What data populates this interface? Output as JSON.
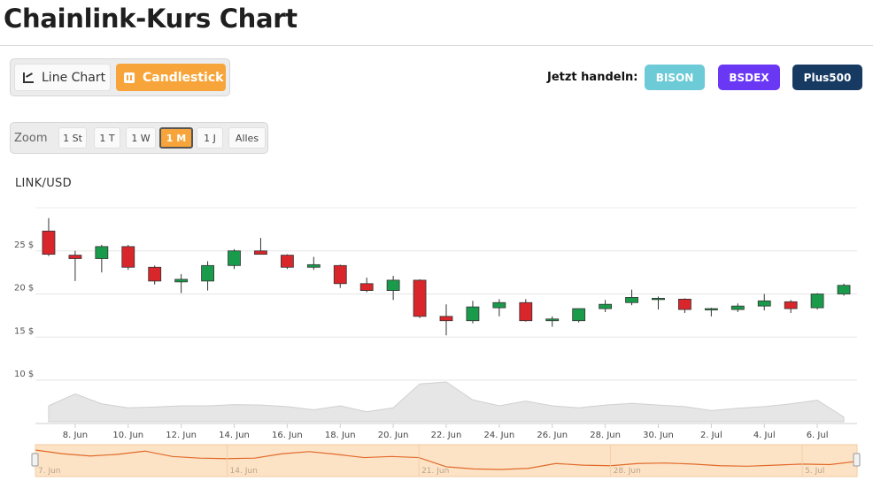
{
  "page": {
    "title": "Chainlink-Kurs Chart"
  },
  "mode_switch": {
    "line_label": "Line Chart",
    "candle_label": "Candlestick",
    "active": "candlestick"
  },
  "trade": {
    "label": "Jetzt handeln:",
    "bison": "BISON",
    "bsdex": "BSDEX",
    "plus500": "Plus500"
  },
  "zoom": {
    "label": "Zoom",
    "options": [
      "1 St",
      "1 T",
      "1 W",
      "1 M",
      "1 J",
      "Alles"
    ],
    "active": "1 M"
  },
  "colors": {
    "accent": "#f7a53a",
    "up": "#1a9b4b",
    "down": "#d8262b",
    "bison": "#6ccbd6",
    "bsdex": "#6a37f5",
    "plus500": "#173a63"
  },
  "chart_data": {
    "type": "candlestick",
    "title": "LINK/USD",
    "y_tick_labels": [
      "10 $",
      "15 $",
      "20 $",
      "25 $"
    ],
    "y_ticks": [
      10,
      15,
      20,
      25
    ],
    "ylim": [
      10,
      30
    ],
    "x_tick_labels": [
      "8. Jun",
      "10. Jun",
      "12. Jun",
      "14. Jun",
      "16. Jun",
      "18. Jun",
      "20. Jun",
      "22. Jun",
      "24. Jun",
      "26. Jun",
      "28. Jun",
      "30. Jun",
      "2. Jul",
      "4. Jul",
      "6. Jul"
    ],
    "x_tick_index": [
      1,
      3,
      5,
      7,
      9,
      11,
      13,
      15,
      17,
      19,
      21,
      23,
      25,
      27,
      29
    ],
    "candles": [
      {
        "o": 27.3,
        "h": 28.8,
        "l": 24.4,
        "c": 24.6
      },
      {
        "o": 24.5,
        "h": 25.0,
        "l": 21.5,
        "c": 24.1
      },
      {
        "o": 24.1,
        "h": 25.7,
        "l": 22.5,
        "c": 25.5
      },
      {
        "o": 25.5,
        "h": 25.7,
        "l": 22.8,
        "c": 23.1
      },
      {
        "o": 23.1,
        "h": 23.3,
        "l": 21.1,
        "c": 21.5
      },
      {
        "o": 21.4,
        "h": 22.3,
        "l": 20.1,
        "c": 21.7
      },
      {
        "o": 21.5,
        "h": 23.8,
        "l": 20.4,
        "c": 23.3
      },
      {
        "o": 23.3,
        "h": 25.2,
        "l": 22.9,
        "c": 25.0
      },
      {
        "o": 25.0,
        "h": 26.5,
        "l": 24.8,
        "c": 24.6
      },
      {
        "o": 24.5,
        "h": 24.6,
        "l": 22.9,
        "c": 23.1
      },
      {
        "o": 23.1,
        "h": 24.3,
        "l": 22.8,
        "c": 23.4
      },
      {
        "o": 23.3,
        "h": 23.4,
        "l": 20.7,
        "c": 21.2
      },
      {
        "o": 21.2,
        "h": 21.9,
        "l": 20.2,
        "c": 20.4
      },
      {
        "o": 20.4,
        "h": 22.1,
        "l": 19.3,
        "c": 21.6
      },
      {
        "o": 21.6,
        "h": 21.7,
        "l": 17.2,
        "c": 17.4
      },
      {
        "o": 17.4,
        "h": 18.8,
        "l": 15.2,
        "c": 16.9
      },
      {
        "o": 16.9,
        "h": 19.2,
        "l": 16.6,
        "c": 18.5
      },
      {
        "o": 18.4,
        "h": 19.4,
        "l": 17.4,
        "c": 19.0
      },
      {
        "o": 19.0,
        "h": 19.4,
        "l": 16.8,
        "c": 16.9
      },
      {
        "o": 16.9,
        "h": 17.4,
        "l": 16.2,
        "c": 17.1
      },
      {
        "o": 16.9,
        "h": 18.3,
        "l": 16.7,
        "c": 18.3
      },
      {
        "o": 18.3,
        "h": 19.3,
        "l": 17.9,
        "c": 18.8
      },
      {
        "o": 19.0,
        "h": 20.5,
        "l": 18.7,
        "c": 19.6
      },
      {
        "o": 19.5,
        "h": 19.7,
        "l": 18.2,
        "c": 19.5
      },
      {
        "o": 19.4,
        "h": 19.5,
        "l": 17.8,
        "c": 18.2
      },
      {
        "o": 18.2,
        "h": 18.4,
        "l": 17.4,
        "c": 18.3
      },
      {
        "o": 18.2,
        "h": 18.9,
        "l": 17.9,
        "c": 18.6
      },
      {
        "o": 18.6,
        "h": 20.0,
        "l": 18.1,
        "c": 19.2
      },
      {
        "o": 19.1,
        "h": 19.3,
        "l": 17.8,
        "c": 18.3
      },
      {
        "o": 18.4,
        "h": 20.1,
        "l": 18.2,
        "c": 20.0
      },
      {
        "o": 20.0,
        "h": 21.2,
        "l": 19.8,
        "c": 21.0
      }
    ],
    "volume": [
      0.4,
      0.7,
      0.45,
      0.35,
      0.37,
      0.4,
      0.4,
      0.43,
      0.42,
      0.38,
      0.3,
      0.4,
      0.25,
      0.35,
      0.95,
      1.0,
      0.55,
      0.4,
      0.52,
      0.4,
      0.35,
      0.42,
      0.46,
      0.42,
      0.38,
      0.28,
      0.34,
      0.38,
      0.45,
      0.54,
      0.12
    ],
    "navigator": {
      "labels": [
        "7. Jun",
        "14. Jun",
        "21. Jun",
        "28. Jun",
        "5. Jul"
      ],
      "label_index": [
        0,
        7,
        14,
        21,
        28
      ],
      "series": [
        27.0,
        26.3,
        25.9,
        26.2,
        26.8,
        25.8,
        25.5,
        25.4,
        25.5,
        26.3,
        26.7,
        26.2,
        25.6,
        25.8,
        25.6,
        23.9,
        23.5,
        23.4,
        23.6,
        24.5,
        24.2,
        24.1,
        24.5,
        24.6,
        24.4,
        24.1,
        24.0,
        24.2,
        24.4,
        24.3,
        24.9
      ]
    }
  }
}
